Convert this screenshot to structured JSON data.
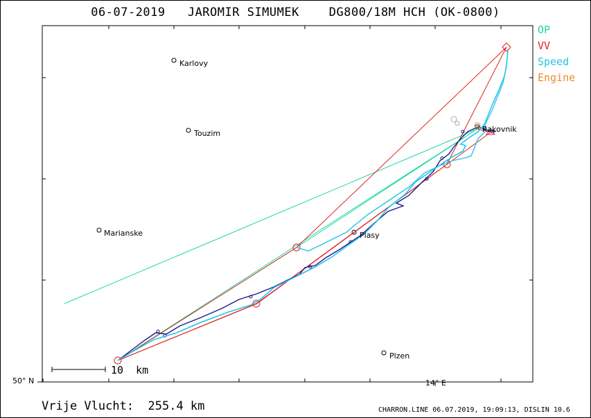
{
  "title": "06-07-2019   JAROMIR SIMUMEK    DG800/18M HCH (OK-0800)",
  "legend": [
    {
      "label": "OP",
      "color": "#1ed6a0"
    },
    {
      "label": "VV",
      "color": "#e0221c"
    },
    {
      "label": "Speed",
      "color": "#22c4e8"
    },
    {
      "label": "Engine",
      "color": "#ef8a2a"
    }
  ],
  "axes": {
    "lat_label": "50° N",
    "lon_label": "14° E"
  },
  "scale": {
    "label": "10  km"
  },
  "towns": [
    {
      "name": "Karlovy"
    },
    {
      "name": "Touzim"
    },
    {
      "name": "Marianske"
    },
    {
      "name": "Plasy"
    },
    {
      "name": "Rakovnik"
    },
    {
      "name": "Plzen"
    }
  ],
  "footer": {
    "distance": "Vrije Vlucht:  255.4 km",
    "info": "CHARRON.LINE 06.07.2019, 19:09:13, DISLIN 10.6"
  },
  "colors": {
    "track": "#1a1a8c",
    "op": "#1ed6a0",
    "vv": "#e0221c",
    "speed": "#22c4e8",
    "engine": "#ef8a2a"
  }
}
